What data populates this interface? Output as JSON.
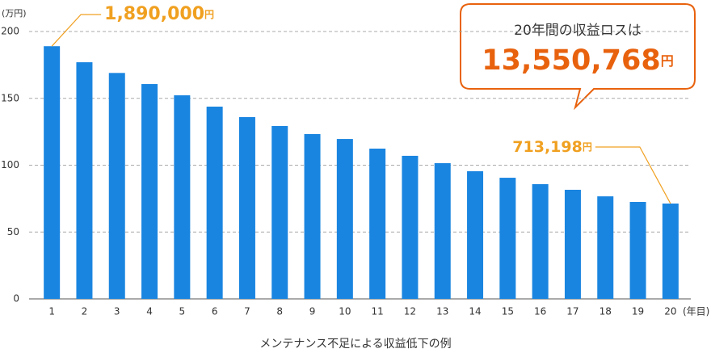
{
  "chart_data": {
    "type": "bar",
    "title": "メンテナンス不足による収益低下の例",
    "y_unit": "(万円)",
    "x_unit": "(年目)",
    "categories": [
      "1",
      "2",
      "3",
      "4",
      "5",
      "6",
      "7",
      "8",
      "9",
      "10",
      "11",
      "12",
      "13",
      "14",
      "15",
      "16",
      "17",
      "18",
      "19",
      "20"
    ],
    "values": [
      189,
      177,
      169,
      160.7,
      152.3,
      143.8,
      136,
      129.3,
      123.3,
      119.6,
      112.4,
      107,
      101.5,
      95.5,
      90.6,
      85.8,
      81.6,
      76.7,
      72.5,
      71.3198
    ],
    "value_labels": [
      "1,890,000",
      null,
      null,
      null,
      null,
      null,
      null,
      null,
      null,
      null,
      null,
      null,
      null,
      null,
      null,
      null,
      null,
      null,
      null,
      "713,198"
    ],
    "value_label_unit": "円",
    "color": "#1a85e0",
    "ylim": [
      0,
      200
    ],
    "yticks": [
      0,
      50,
      100,
      150,
      200
    ],
    "grid": true,
    "callout": {
      "text": "20年間の収益ロスは",
      "value": "13,550,768",
      "unit": "円"
    }
  }
}
